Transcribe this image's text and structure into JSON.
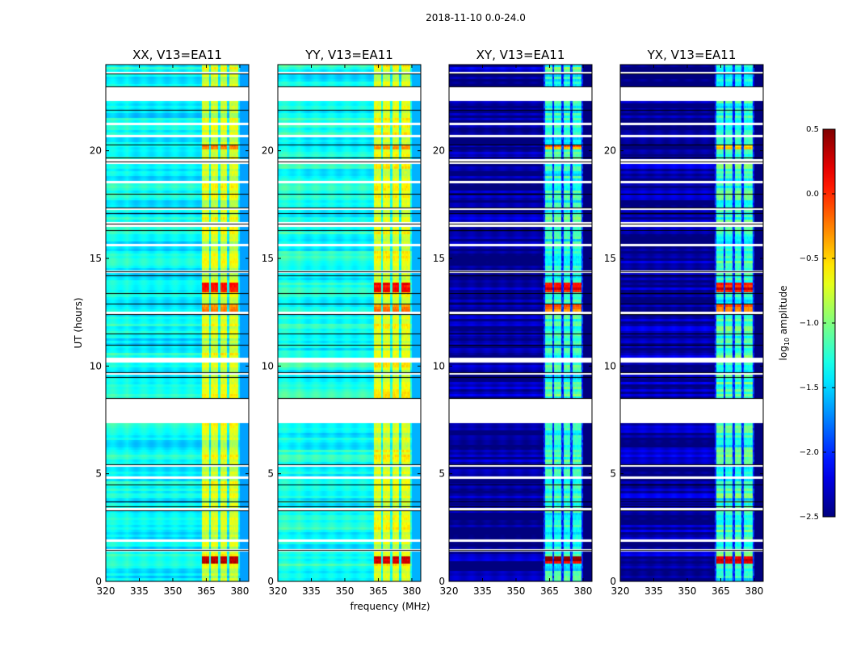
{
  "chart_data": {
    "type": "heatmap",
    "suptitle": "2018-11-10 0.0-24.0",
    "xlabel": "frequency (MHz)",
    "ylabel": "UT (hours)",
    "xlim": [
      320,
      384
    ],
    "ylim": [
      0,
      24
    ],
    "xticks": [
      "320",
      "335",
      "350",
      "365",
      "380"
    ],
    "xtick_values": [
      320,
      335,
      350,
      365,
      380
    ],
    "yticks": [
      "0",
      "5",
      "10",
      "15",
      "20"
    ],
    "ytick_values": [
      0,
      5,
      10,
      15,
      20
    ],
    "colorbar": {
      "label": "log10 amplitude",
      "label_main": "log",
      "label_sub": "10",
      "label_rest": " amplitude",
      "range": [
        -2.5,
        0.5
      ],
      "ticks": [
        "0.5",
        "0.0",
        "−0.5",
        "−1.0",
        "−1.5",
        "−2.0",
        "−2.5"
      ],
      "tick_values": [
        0.5,
        0.0,
        -0.5,
        -1.0,
        -1.5,
        -2.0,
        -2.5
      ],
      "colormap": "jet"
    },
    "bright_band_mhz": [
      [
        363,
        366
      ],
      [
        367,
        370
      ],
      [
        371,
        374
      ],
      [
        375,
        379
      ]
    ],
    "rolloff_mhz": 380,
    "flagged_hours": [
      [
        7.34,
        8.46
      ],
      [
        22.28,
        22.96
      ],
      [
        23.55,
        23.7
      ],
      [
        1.84,
        2.02
      ],
      [
        1.45,
        1.55
      ],
      [
        4.8,
        4.95
      ],
      [
        5.3,
        5.4
      ],
      [
        10.2,
        10.4
      ],
      [
        14.3,
        14.4
      ],
      [
        16.5,
        16.7
      ],
      [
        17.3,
        17.4
      ],
      [
        19.4,
        19.6
      ],
      [
        20.6,
        20.75
      ],
      [
        21.2,
        21.35
      ],
      [
        3.3,
        3.4
      ],
      [
        12.4,
        12.5
      ],
      [
        9.6,
        9.7
      ],
      [
        15.55,
        15.65
      ],
      [
        18.5,
        18.6
      ]
    ],
    "black_line_hours": [
      1.45,
      3.3,
      3.5,
      3.7,
      4.5,
      5.45,
      8.5,
      9.5,
      9.7,
      11.0,
      11.5,
      12.4,
      12.9,
      13.4,
      14.2,
      14.4,
      16.3,
      16.6,
      17.1,
      17.35,
      18.0,
      19.5,
      19.7,
      20.3,
      21.9,
      23.0,
      23.6
    ],
    "hot_hours": [
      [
        0.8,
        1.2,
        0.2
      ],
      [
        13.5,
        13.9,
        0.0
      ],
      [
        20.1,
        20.3,
        -0.3
      ],
      [
        12.5,
        12.9,
        -0.3
      ]
    ],
    "panels": [
      {
        "title": "XX, V13=EA11",
        "base_level": -1.45,
        "band_level": -0.8,
        "noise": 0.12
      },
      {
        "title": "YY, V13=EA11",
        "base_level": -1.4,
        "band_level": -0.75,
        "noise": 0.12
      },
      {
        "title": "XY, V13=EA11",
        "base_level": -2.5,
        "band_level": -1.3,
        "noise": 0.25
      },
      {
        "title": "YX, V13=EA11",
        "base_level": -2.5,
        "band_level": -1.3,
        "noise": 0.25
      }
    ]
  }
}
